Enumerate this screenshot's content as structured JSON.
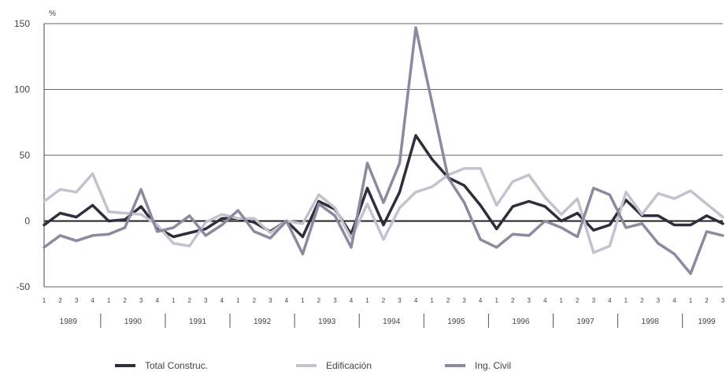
{
  "chart_data": {
    "type": "line",
    "ylabel": "%",
    "ylim": [
      -50,
      150
    ],
    "yticks": [
      150,
      100,
      50,
      0,
      -50
    ],
    "grid": true,
    "legend_position": "bottom",
    "quarter_labels": [
      "1",
      "2",
      "3",
      "4",
      "1",
      "2",
      "3",
      "4",
      "1",
      "2",
      "3",
      "4",
      "1",
      "2",
      "3",
      "4",
      "1",
      "2",
      "3",
      "4",
      "1",
      "2",
      "3",
      "4",
      "1",
      "2",
      "3",
      "4",
      "1",
      "2",
      "3",
      "4",
      "1",
      "2",
      "3",
      "4",
      "1",
      "2",
      "3",
      "4",
      "1",
      "2",
      "3"
    ],
    "years": [
      "1989",
      "1990",
      "1991",
      "1992",
      "1993",
      "1994",
      "1995",
      "1996",
      "1997",
      "1998",
      "1999"
    ],
    "series": [
      {
        "name": "Total Construc.",
        "color": "#2e2e3c",
        "values": [
          -3,
          6,
          3,
          12,
          0,
          1,
          11,
          -5,
          -12,
          -9,
          -6,
          2,
          2,
          -1,
          -8,
          0,
          -12,
          15,
          9,
          -10,
          25,
          -3,
          22,
          65,
          47,
          33,
          27,
          12,
          -6,
          11,
          15,
          11,
          0,
          6,
          -7,
          -3,
          16,
          4,
          4,
          -3,
          -3,
          4,
          -2
        ]
      },
      {
        "name": "Edificación",
        "color": "#c3c3cf",
        "values": [
          15,
          24,
          22,
          36,
          7,
          6,
          5,
          -3,
          -17,
          -19,
          -1,
          5,
          2,
          2,
          -9,
          0,
          -2,
          20,
          10,
          -13,
          13,
          -14,
          10,
          22,
          26,
          35,
          40,
          40,
          12,
          30,
          35,
          18,
          5,
          17,
          -24,
          -19,
          22,
          5,
          21,
          17,
          23,
          13,
          3
        ]
      },
      {
        "name": "Ing. Civil",
        "color": "#8b8b9f",
        "values": [
          -20,
          -11,
          -15,
          -11,
          -10,
          -5,
          24,
          -8,
          -5,
          4,
          -11,
          -3,
          8,
          -8,
          -13,
          0,
          -25,
          13,
          4,
          -20,
          44,
          14,
          44,
          147,
          90,
          33,
          14,
          -14,
          -20,
          -10,
          -11,
          0,
          -5,
          -12,
          25,
          20,
          -5,
          -2,
          -17,
          -25,
          -40,
          -8,
          -11
        ]
      }
    ]
  }
}
